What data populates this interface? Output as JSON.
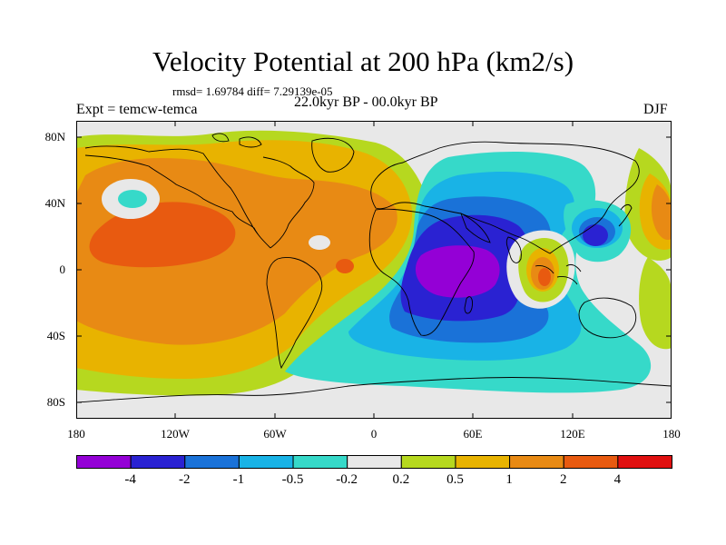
{
  "title": "Velocity Potential at 200 hPa (km2/s)",
  "stats": "rmsd= 1.69784 diff= 7.29139e-05",
  "experiment": "Expt = temcw-temca",
  "period": "22.0kyr BP - 00.0kyr BP",
  "season": "DJF",
  "axes": {
    "y_ticks": [
      "80N",
      "40N",
      "0",
      "40S",
      "80S"
    ],
    "x_ticks": [
      "180",
      "120W",
      "60W",
      "0",
      "60E",
      "120E",
      "180"
    ]
  },
  "colorbar": {
    "labels": [
      "-4",
      "-2",
      "-1",
      "-0.5",
      "-0.2",
      "0.2",
      "0.5",
      "1",
      "2",
      "4"
    ],
    "colors": [
      "#9400d6",
      "#2a22d2",
      "#1a72d8",
      "#19b3e6",
      "#36d9c9",
      "#e8e8e8",
      "#b6d81f",
      "#e8b300",
      "#e88a14",
      "#e85a10",
      "#e01010"
    ]
  }
}
